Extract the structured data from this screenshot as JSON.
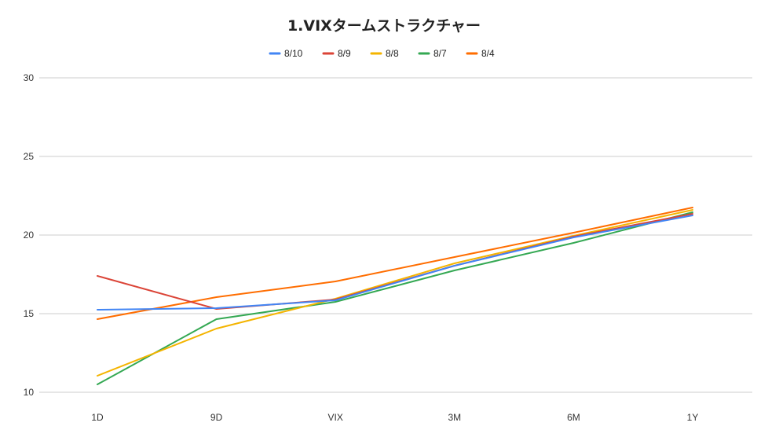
{
  "chart_data": {
    "type": "line",
    "title": "1.VIXタームストラクチャー",
    "xlabel": "",
    "ylabel": "",
    "categories": [
      "1D",
      "9D",
      "VIX",
      "3M",
      "6M",
      "1Y"
    ],
    "ylim": [
      10,
      30
    ],
    "yticks": [
      10,
      15,
      20,
      25,
      30
    ],
    "grid": true,
    "legend_position": "top",
    "series": [
      {
        "name": "8/10",
        "color": "#4285f4",
        "values": [
          15.25,
          15.35,
          15.85,
          18.05,
          19.85,
          21.25
        ]
      },
      {
        "name": "8/9",
        "color": "#db4437",
        "values": [
          17.4,
          15.3,
          15.9,
          18.05,
          19.9,
          21.35
        ]
      },
      {
        "name": "8/8",
        "color": "#f4b400",
        "values": [
          11.05,
          14.05,
          15.95,
          18.2,
          19.95,
          21.6
        ]
      },
      {
        "name": "8/7",
        "color": "#34a853",
        "values": [
          10.5,
          14.65,
          15.75,
          17.75,
          19.5,
          21.45
        ]
      },
      {
        "name": "8/4",
        "color": "#ff6d00",
        "values": [
          14.65,
          16.05,
          17.05,
          18.6,
          20.15,
          21.75
        ]
      }
    ]
  }
}
